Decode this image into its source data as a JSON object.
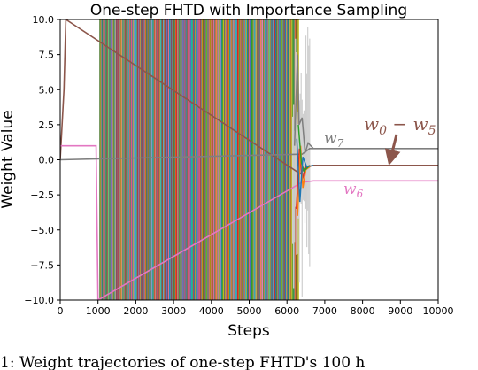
{
  "chart_data": {
    "type": "line",
    "title": "One-step FHTD with Importance Sampling",
    "xlabel": "Steps",
    "ylabel": "Weight Value",
    "xlim": [
      0,
      10000
    ],
    "ylim": [
      -10.0,
      10.0
    ],
    "xticks": [
      0,
      1000,
      2000,
      3000,
      4000,
      5000,
      6000,
      7000,
      8000,
      9000,
      10000
    ],
    "yticks": [
      -10.0,
      -7.5,
      -5.0,
      -2.5,
      0.0,
      2.5,
      5.0,
      7.5,
      10.0
    ],
    "xtick_labels": [
      "0",
      "1000",
      "2000",
      "3000",
      "4000",
      "5000",
      "6000",
      "7000",
      "8000",
      "9000",
      "10000"
    ],
    "ytick_labels": [
      "−10.0",
      "−7.5",
      "−5.0",
      "−2.5",
      "0.0",
      "2.5",
      "5.0",
      "7.5",
      "10.0"
    ],
    "grid": false,
    "oscillation_region": [
      1050,
      6300
    ],
    "series": [
      {
        "name": "w0 − w5",
        "color": "#8c564b",
        "x": [
          0,
          50,
          100,
          150,
          6350,
          6500,
          6700,
          7000,
          10000
        ],
        "y": [
          0.0,
          2.5,
          5.0,
          10.0,
          -1.0,
          -0.5,
          -0.4,
          -0.4,
          -0.4
        ]
      },
      {
        "name": "w6",
        "color": "#e377c2",
        "x": [
          0,
          950,
          1000,
          6400,
          6700,
          7000,
          10000
        ],
        "y": [
          1.0,
          1.0,
          -10.0,
          -1.6,
          -1.5,
          -1.5,
          -1.5
        ]
      },
      {
        "name": "w7",
        "color": "#7f7f7f",
        "x": [
          0,
          6400,
          6600,
          6800,
          7000,
          10000
        ],
        "y": [
          0.0,
          0.4,
          0.8,
          0.8,
          0.8,
          0.8
        ]
      }
    ],
    "annotations": [
      {
        "base": "w",
        "sub": "7",
        "color": "#7f7f7f"
      },
      {
        "base": "w",
        "sub": "0",
        "mid": " − w",
        "sub2": "5",
        "color": "#8c564b"
      },
      {
        "base": "w",
        "sub": "6",
        "color": "#e377c2"
      }
    ]
  },
  "caption": "1: Weight trajectories of one-step FHTD's 100 h"
}
